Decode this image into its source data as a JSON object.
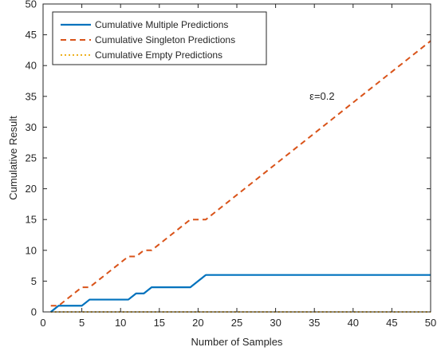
{
  "chart_data": {
    "type": "line",
    "xlabel": "Number of Samples",
    "ylabel": "Cumulative Result",
    "xlim": [
      0,
      50
    ],
    "ylim": [
      0,
      50
    ],
    "xticks": [
      0,
      5,
      10,
      15,
      20,
      25,
      30,
      35,
      40,
      45,
      50
    ],
    "yticks": [
      0,
      5,
      10,
      15,
      20,
      25,
      30,
      35,
      40,
      45,
      50
    ],
    "grid": false,
    "legend_position": "top-left",
    "annotation": {
      "text_symbol": "ε",
      "text_value": "=0.2",
      "x": 36,
      "y": 35
    },
    "series": [
      {
        "name": "Cumulative Multiple Predictions",
        "color": "#0072BD",
        "line_style": "solid",
        "x": [
          1,
          2,
          3,
          4,
          5,
          6,
          7,
          8,
          9,
          10,
          11,
          12,
          13,
          14,
          15,
          16,
          17,
          18,
          19,
          20,
          21,
          22,
          23,
          24,
          25,
          26,
          27,
          28,
          29,
          30,
          31,
          32,
          33,
          34,
          35,
          36,
          37,
          38,
          39,
          40,
          41,
          42,
          43,
          44,
          45,
          46,
          47,
          48,
          49,
          50
        ],
        "values": [
          0,
          1,
          1,
          1,
          1,
          2,
          2,
          2,
          2,
          2,
          2,
          3,
          3,
          4,
          4,
          4,
          4,
          4,
          4,
          5,
          6,
          6,
          6,
          6,
          6,
          6,
          6,
          6,
          6,
          6,
          6,
          6,
          6,
          6,
          6,
          6,
          6,
          6,
          6,
          6,
          6,
          6,
          6,
          6,
          6,
          6,
          6,
          6,
          6,
          6
        ]
      },
      {
        "name": "Cumulative Singleton Predictions",
        "color": "#D95319",
        "line_style": "dashed",
        "x": [
          1,
          2,
          3,
          4,
          5,
          6,
          7,
          8,
          9,
          10,
          11,
          12,
          13,
          14,
          15,
          16,
          17,
          18,
          19,
          20,
          21,
          22,
          23,
          24,
          25,
          26,
          27,
          28,
          29,
          30,
          31,
          32,
          33,
          34,
          35,
          36,
          37,
          38,
          39,
          40,
          41,
          42,
          43,
          44,
          45,
          46,
          47,
          48,
          49,
          50
        ],
        "values": [
          1,
          1,
          2,
          3,
          4,
          4,
          5,
          6,
          7,
          8,
          9,
          9,
          10,
          10,
          11,
          12,
          13,
          14,
          15,
          15,
          15,
          16,
          17,
          18,
          19,
          20,
          21,
          22,
          23,
          24,
          25,
          26,
          27,
          28,
          29,
          30,
          31,
          32,
          33,
          34,
          35,
          36,
          37,
          38,
          39,
          40,
          41,
          42,
          43,
          44
        ]
      },
      {
        "name": "Cumulative Empty Predictions",
        "color": "#EDB120",
        "line_style": "dotted",
        "x": [
          1,
          2,
          3,
          4,
          5,
          6,
          7,
          8,
          9,
          10,
          11,
          12,
          13,
          14,
          15,
          16,
          17,
          18,
          19,
          20,
          21,
          22,
          23,
          24,
          25,
          26,
          27,
          28,
          29,
          30,
          31,
          32,
          33,
          34,
          35,
          36,
          37,
          38,
          39,
          40,
          41,
          42,
          43,
          44,
          45,
          46,
          47,
          48,
          49,
          50
        ],
        "values": [
          0,
          0,
          0,
          0,
          0,
          0,
          0,
          0,
          0,
          0,
          0,
          0,
          0,
          0,
          0,
          0,
          0,
          0,
          0,
          0,
          0,
          0,
          0,
          0,
          0,
          0,
          0,
          0,
          0,
          0,
          0,
          0,
          0,
          0,
          0,
          0,
          0,
          0,
          0,
          0,
          0,
          0,
          0,
          0,
          0,
          0,
          0,
          0,
          0,
          0
        ]
      }
    ]
  }
}
